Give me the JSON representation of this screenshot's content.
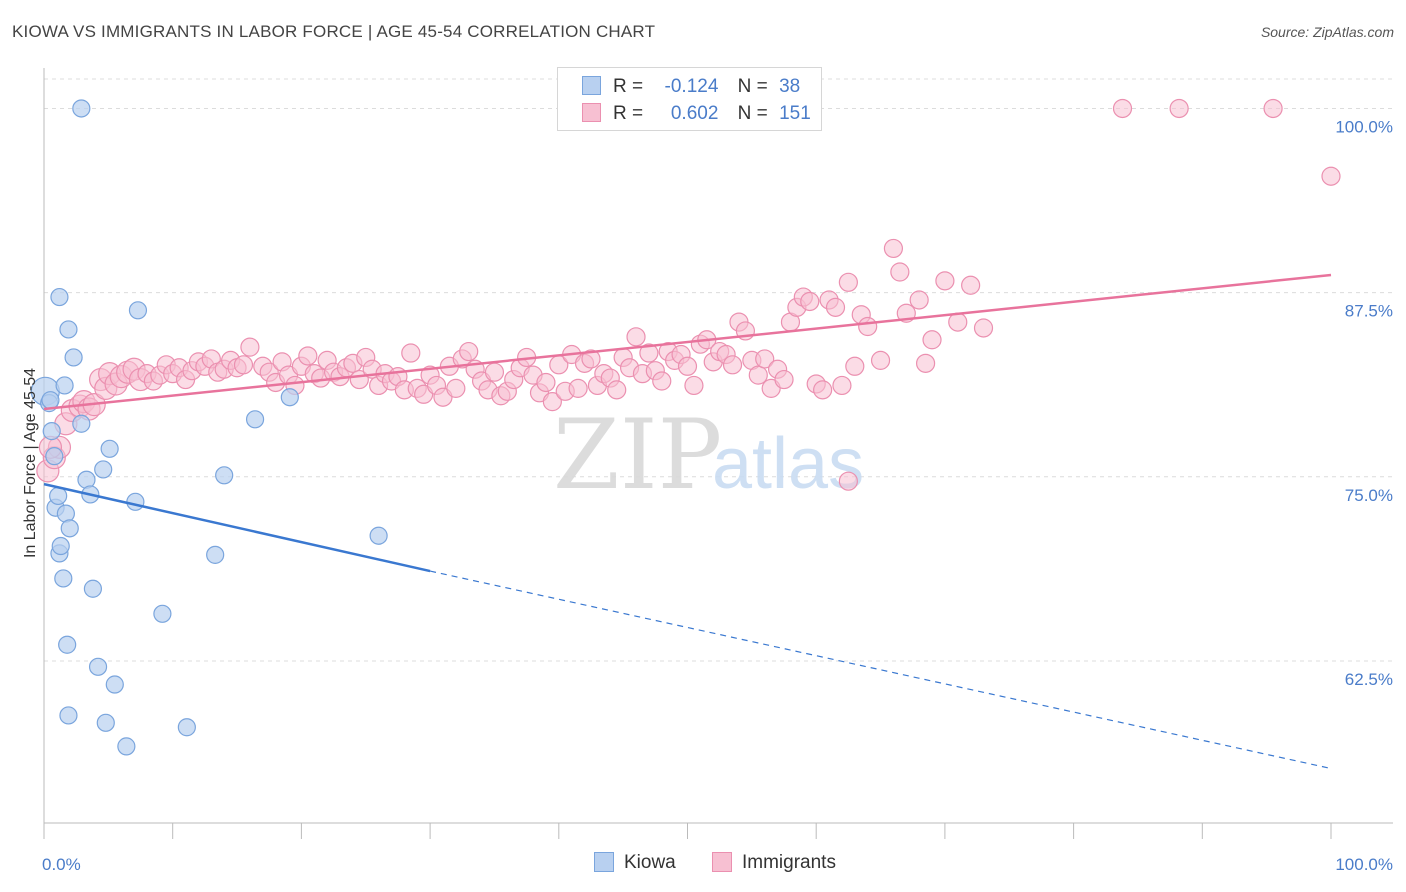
{
  "title": "KIOWA VS IMMIGRANTS IN LABOR FORCE | AGE 45-54 CORRELATION CHART",
  "source": "Source: ZipAtlas.com",
  "watermark": {
    "zip": "ZIP",
    "atlas": "atlas"
  },
  "legend": {
    "kiowa": {
      "r_label": "R =",
      "r_value": "-0.124",
      "n_label": "N =",
      "n_value": "38"
    },
    "immigrants": {
      "r_label": "R =",
      "r_value": "0.602",
      "n_label": "N =",
      "n_value": "151"
    }
  },
  "bottom_legend": {
    "kiowa": "Kiowa",
    "immigrants": "Immigrants"
  },
  "colors": {
    "kiowa_fill": "#b8d0f0",
    "kiowa_stroke": "#7aa5dd",
    "kiowa_line": "#3a78d0",
    "immigrants_fill": "#f7c0d2",
    "immigrants_stroke": "#eb90b0",
    "immigrants_line": "#e8739c",
    "tick_blue": "#4a7cc9"
  },
  "chart_data": {
    "type": "scatter",
    "title": "KIOWA VS IMMIGRANTS IN LABOR FORCE | AGE 45-54 CORRELATION CHART",
    "xlabel": "",
    "ylabel": "In Labor Force | Age 45-54",
    "xlim": [
      0,
      100
    ],
    "ylim": [
      51.5,
      102
    ],
    "x_tick_labels": [
      "0.0%",
      "100.0%"
    ],
    "y_ticks": [
      62.5,
      75.0,
      87.5,
      100.0
    ],
    "y_tick_labels": [
      "62.5%",
      "75.0%",
      "87.5%",
      "100.0%"
    ],
    "grid": true,
    "series": [
      {
        "name": "Kiowa",
        "points": [
          [
            0.1,
            80.8
          ],
          [
            0.4,
            80.0
          ],
          [
            0.6,
            78.1
          ],
          [
            0.8,
            76.4
          ],
          [
            0.9,
            72.9
          ],
          [
            1.1,
            73.7
          ],
          [
            1.2,
            69.8
          ],
          [
            1.3,
            70.3
          ],
          [
            1.5,
            68.1
          ],
          [
            1.6,
            81.2
          ],
          [
            1.7,
            72.5
          ],
          [
            1.8,
            63.6
          ],
          [
            1.9,
            58.8
          ],
          [
            2.0,
            71.5
          ],
          [
            2.3,
            83.1
          ],
          [
            1.9,
            85.0
          ],
          [
            1.2,
            87.2
          ],
          [
            2.9,
            78.6
          ],
          [
            3.3,
            74.8
          ],
          [
            3.6,
            73.8
          ],
          [
            3.8,
            67.4
          ],
          [
            4.2,
            62.1
          ],
          [
            4.6,
            75.5
          ],
          [
            4.8,
            58.3
          ],
          [
            5.1,
            76.9
          ],
          [
            5.5,
            60.9
          ],
          [
            6.4,
            56.7
          ],
          [
            7.1,
            73.3
          ],
          [
            7.3,
            86.3
          ],
          [
            9.2,
            65.7
          ],
          [
            11.1,
            58.0
          ],
          [
            13.3,
            69.7
          ],
          [
            14.0,
            75.1
          ],
          [
            16.4,
            78.9
          ],
          [
            19.1,
            80.4
          ],
          [
            26.0,
            71.0
          ],
          [
            2.9,
            100.0
          ],
          [
            0.5,
            80.2
          ]
        ],
        "trend": {
          "x0": 0,
          "y0": 74.5,
          "x1": 30,
          "y1": 68.6,
          "dashed_to_x": 100,
          "dashed_to_y": 55.2
        }
      },
      {
        "name": "Immigrants",
        "points": [
          [
            0.3,
            75.4
          ],
          [
            0.8,
            76.3
          ],
          [
            1.2,
            77.0
          ],
          [
            1.7,
            78.6
          ],
          [
            2.2,
            79.5
          ],
          [
            2.8,
            79.8
          ],
          [
            3.1,
            80.1
          ],
          [
            3.5,
            79.6
          ],
          [
            3.9,
            79.9
          ],
          [
            4.4,
            81.6
          ],
          [
            4.8,
            81.0
          ],
          [
            5.1,
            82.0
          ],
          [
            5.6,
            81.3
          ],
          [
            6.0,
            81.8
          ],
          [
            6.5,
            82.1
          ],
          [
            7.0,
            82.3
          ],
          [
            7.5,
            81.6
          ],
          [
            8.0,
            82.0
          ],
          [
            8.5,
            81.5
          ],
          [
            9.0,
            81.9
          ],
          [
            9.5,
            82.6
          ],
          [
            10.0,
            82.0
          ],
          [
            10.5,
            82.4
          ],
          [
            11.0,
            81.6
          ],
          [
            11.5,
            82.2
          ],
          [
            12.0,
            82.8
          ],
          [
            12.5,
            82.5
          ],
          [
            13.0,
            83.0
          ],
          [
            13.5,
            82.1
          ],
          [
            14.0,
            82.3
          ],
          [
            14.5,
            82.9
          ],
          [
            15.0,
            82.4
          ],
          [
            15.5,
            82.6
          ],
          [
            16.0,
            83.8
          ],
          [
            17.0,
            82.5
          ],
          [
            17.5,
            82.1
          ],
          [
            18.0,
            81.4
          ],
          [
            18.5,
            82.8
          ],
          [
            19.0,
            81.9
          ],
          [
            19.5,
            81.2
          ],
          [
            20.0,
            82.5
          ],
          [
            20.5,
            83.2
          ],
          [
            21.0,
            82.0
          ],
          [
            21.5,
            81.7
          ],
          [
            22.0,
            82.9
          ],
          [
            22.5,
            82.1
          ],
          [
            23.0,
            81.8
          ],
          [
            23.5,
            82.4
          ],
          [
            24.0,
            82.7
          ],
          [
            24.5,
            81.6
          ],
          [
            25.0,
            83.1
          ],
          [
            25.5,
            82.3
          ],
          [
            26.0,
            81.2
          ],
          [
            26.5,
            82.0
          ],
          [
            27.0,
            81.5
          ],
          [
            27.5,
            81.8
          ],
          [
            28.0,
            80.9
          ],
          [
            28.5,
            83.4
          ],
          [
            29.0,
            81.0
          ],
          [
            29.5,
            80.6
          ],
          [
            30.0,
            81.9
          ],
          [
            30.5,
            81.2
          ],
          [
            31.0,
            80.4
          ],
          [
            31.5,
            82.5
          ],
          [
            32.0,
            81.0
          ],
          [
            32.5,
            83.0
          ],
          [
            33.0,
            83.5
          ],
          [
            33.5,
            82.3
          ],
          [
            34.0,
            81.5
          ],
          [
            34.5,
            80.9
          ],
          [
            35.0,
            82.1
          ],
          [
            35.5,
            80.5
          ],
          [
            36.0,
            80.8
          ],
          [
            36.5,
            81.6
          ],
          [
            37.0,
            82.4
          ],
          [
            37.5,
            83.1
          ],
          [
            38.0,
            81.9
          ],
          [
            38.5,
            80.7
          ],
          [
            39.0,
            81.4
          ],
          [
            39.5,
            80.1
          ],
          [
            40.0,
            82.6
          ],
          [
            40.5,
            80.8
          ],
          [
            41.0,
            83.3
          ],
          [
            41.5,
            81.0
          ],
          [
            42.0,
            82.7
          ],
          [
            42.5,
            83.0
          ],
          [
            43.0,
            81.2
          ],
          [
            43.5,
            82.0
          ],
          [
            44.0,
            81.7
          ],
          [
            44.5,
            80.9
          ],
          [
            45.0,
            83.1
          ],
          [
            45.5,
            82.4
          ],
          [
            46.0,
            84.5
          ],
          [
            46.5,
            82.0
          ],
          [
            47.0,
            83.4
          ],
          [
            47.5,
            82.2
          ],
          [
            48.0,
            81.5
          ],
          [
            48.5,
            83.5
          ],
          [
            49.0,
            82.9
          ],
          [
            49.5,
            83.3
          ],
          [
            50.0,
            82.5
          ],
          [
            50.5,
            81.2
          ],
          [
            51.0,
            84.0
          ],
          [
            51.5,
            84.3
          ],
          [
            52.0,
            82.8
          ],
          [
            52.5,
            83.5
          ],
          [
            53.0,
            83.3
          ],
          [
            53.5,
            82.6
          ],
          [
            54.0,
            85.5
          ],
          [
            54.5,
            84.9
          ],
          [
            55.0,
            82.9
          ],
          [
            55.5,
            81.9
          ],
          [
            56.0,
            83.0
          ],
          [
            56.5,
            81.0
          ],
          [
            57.0,
            82.3
          ],
          [
            57.5,
            81.6
          ],
          [
            58.0,
            85.5
          ],
          [
            58.5,
            86.5
          ],
          [
            59.0,
            87.2
          ],
          [
            59.5,
            86.9
          ],
          [
            60.0,
            81.3
          ],
          [
            60.5,
            80.9
          ],
          [
            61.0,
            87.0
          ],
          [
            61.5,
            86.5
          ],
          [
            62.0,
            81.2
          ],
          [
            62.5,
            88.2
          ],
          [
            63.0,
            82.5
          ],
          [
            63.5,
            86.0
          ],
          [
            64.0,
            85.2
          ],
          [
            65.0,
            82.9
          ],
          [
            66.0,
            90.5
          ],
          [
            66.5,
            88.9
          ],
          [
            67.0,
            86.1
          ],
          [
            68.0,
            87.0
          ],
          [
            68.5,
            82.7
          ],
          [
            69.0,
            84.3
          ],
          [
            70.0,
            88.3
          ],
          [
            71.0,
            85.5
          ],
          [
            72.0,
            88.0
          ],
          [
            73.0,
            85.1
          ],
          [
            62.5,
            74.7
          ],
          [
            83.8,
            100.0
          ],
          [
            88.2,
            100.0
          ],
          [
            95.5,
            100.0
          ],
          [
            100.0,
            95.4
          ],
          [
            0.5,
            77.0
          ]
        ],
        "trend": {
          "x0": 0,
          "y0": 79.6,
          "x1": 100,
          "y1": 88.7
        }
      }
    ]
  }
}
